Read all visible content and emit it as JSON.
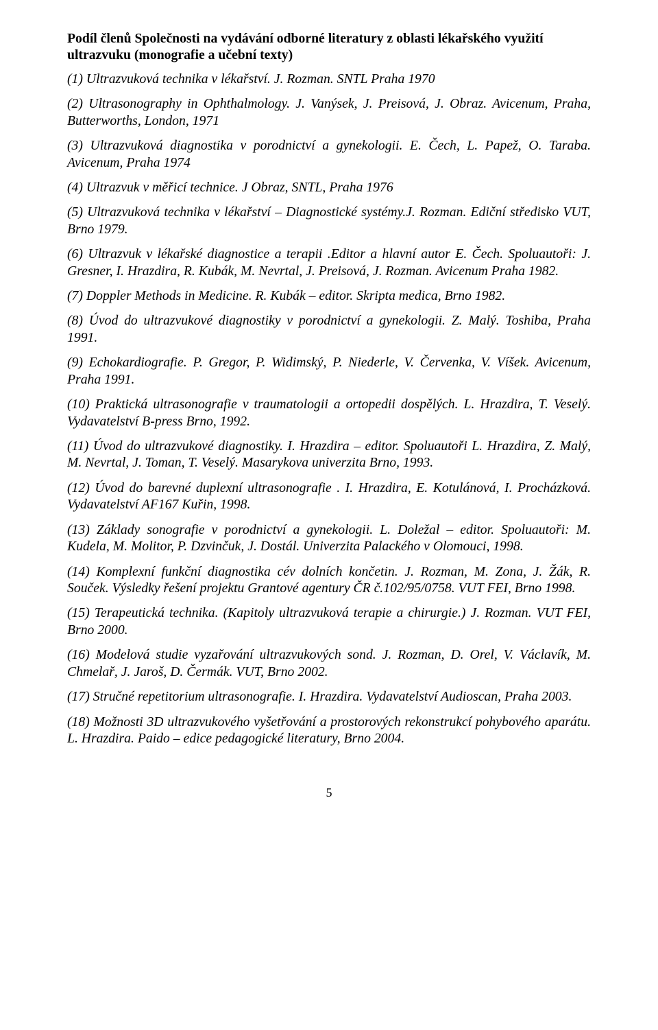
{
  "heading": "Podíl členů Společnosti na vydávání odborné literatury  z oblasti lékařského využití ultrazvuku (monografie a učební texty)",
  "entries": [
    "(1) Ultrazvuková technika v lékařství. J. Rozman. SNTL Praha 1970",
    "(2) Ultrasonography in Ophthalmology. J. Vanýsek, J. Preisová, J. Obraz. Avicenum, Praha, Butterworths, London, 1971",
    "(3) Ultrazvuková diagnostika  v porodnictví  a gynekologii. E. Čech, L. Papež, O. Taraba. Avicenum, Praha 1974",
    "(4) Ultrazvuk v měřicí technice. J Obraz, SNTL, Praha 1976",
    "(5) Ultrazvuková technika v lékařství – Diagnostické systémy.J. Rozman. Ediční středisko VUT, Brno 1979.",
    "(6) Ultrazvuk  v lékařské  diagnostice  a terapii .Editor  a hlavní  autor E.  Čech. Spoluautoři: J. Gresner, I. Hrazdira, R. Kubák, M. Nevrtal, J. Preisová, J. Rozman. Avicenum Praha 1982.",
    "(7) Doppler Methods in Medicine. R. Kubák – editor. Skripta medica, Brno 1982.",
    "(8) Úvod  do  ultrazvukové  diagnostiky  v porodnictví  a gynekologii.  Z.  Malý. Toshiba, Praha 1991.",
    "(9) Echokardiografie. P. Gregor, P. Widimský, P. Niederle, V. Červenka, V. Víšek. Avicenum, Praha 1991.",
    "(10) Praktická  ultrasonografie  v traumatologii  a ortopedii  dospělých.  L.  Hrazdira, T. Veselý. Vydavatelství B-press Brno, 1992.",
    "(11)  Úvod  do  ultrazvukové  diagnostiky.  I.  Hrazdira  –  editor.  Spoluautoři L. Hrazdira, Z. Malý, M. Nevrtal,  J. Toman, T. Veselý. Masarykova univerzita Brno, 1993.",
    "(12) Úvod  do  barevné  duplexní  ultrasonografie .  I.  Hrazdira,  E.  Kotulánová, I. Procházková. Vydavatelství AF167  Kuřin, 1998.",
    "(13) Základy sonografie v porodnictví a gynekologii. L. Doležal – editor. Spoluautoři:  M.  Kudela,  M.  Molitor,  P.  Dzvinčuk,  J.  Dostál.  Univerzita  Palackého v Olomouci, 1998.",
    "(14) Komplexní funkční diagnostika   cév dolních končetin. J. Rozman, M. Zona, J. Žák, R. Souček. Výsledky řešení projektu Grantové agentury ČR č.102/95/0758.  VUT FEI, Brno 1998.",
    "(15) Terapeutická technika. (Kapitoly ultrazvuková terapie a chirurgie.) J. Rozman. VUT FEI, Brno 2000.",
    "(16)  Modelová  studie  vyzařování  ultrazvukových  sond.  J.  Rozman,  D.  Orel, V. Václavík, M. Chmelař, J. Jaroš, D. Čermák. VUT, Brno 2002.",
    "(17) Stručné repetitorium ultrasonografie. I. Hrazdira.  Vydavatelství Audioscan, Praha 2003.",
    "(18) Možnosti 3D ultrazvukového vyšetřování a prostorových rekonstrukcí pohybového aparátu.  L. Hrazdira. Paido – edice pedagogické literatury,  Brno 2004."
  ],
  "pageNumber": "5"
}
